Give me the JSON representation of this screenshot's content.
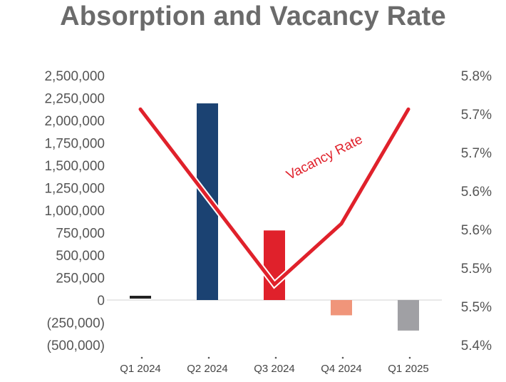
{
  "chart_data": {
    "type": "bar",
    "title": "Absorption and Vacancy Rate",
    "categories": [
      "Q1 2024",
      "Q2 2024",
      "Q3 2024",
      "Q4 2024",
      "Q1 2025"
    ],
    "series": [
      {
        "name": "Absorption",
        "type": "bar",
        "axis": "left",
        "values": [
          40000,
          2190000,
          775000,
          -170000,
          -340000
        ],
        "colors": [
          "#222222",
          "#1b4272",
          "#e0212b",
          "#f0957a",
          "#a0a0a4"
        ]
      },
      {
        "name": "Vacancy Rate",
        "type": "line",
        "axis": "right",
        "color": "#e0212b",
        "values": [
          5.75,
          5.62,
          5.49,
          5.58,
          5.75
        ]
      }
    ],
    "left_axis": {
      "ylim": [
        -500000,
        2500000
      ],
      "ticks": [
        2500000,
        2250000,
        2000000,
        1750000,
        1500000,
        1250000,
        1000000,
        750000,
        500000,
        250000,
        0,
        -250000,
        -500000
      ],
      "tick_labels": [
        "2,500,000",
        "2,250,000",
        "2,000,000",
        "1,750,000",
        "1,500,000",
        "1,250,000",
        "1,000,000",
        "750,000",
        "500,000",
        "250,000",
        "0",
        "(250,000)",
        "(500,000)"
      ]
    },
    "right_axis": {
      "ylim": [
        5.4,
        5.8
      ],
      "tick_labels": [
        "5.8%",
        "5.7%",
        "5.7%",
        "5.6%",
        "5.6%",
        "5.5%",
        "5.5%",
        "5.4%"
      ]
    },
    "annotation": "Vacancy Rate",
    "xlabel": "",
    "ylabel": "",
    "grid": false,
    "legend": "none"
  }
}
